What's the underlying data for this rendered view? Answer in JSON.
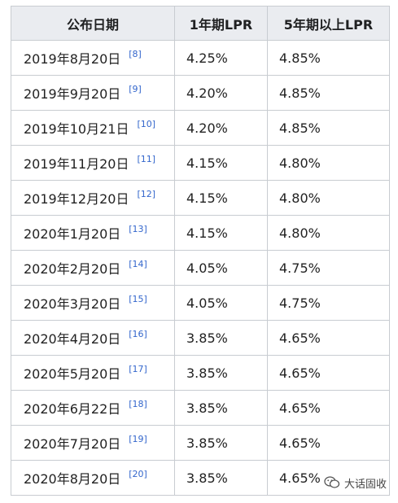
{
  "table": {
    "headers": [
      "公布日期",
      "1年期LPR",
      "5年期以上LPR"
    ],
    "rows": [
      {
        "date": "2019年8月20日",
        "ref": "[8]",
        "lpr1": "4.25%",
        "lpr5": "4.85%"
      },
      {
        "date": "2019年9月20日",
        "ref": "[9]",
        "lpr1": "4.20%",
        "lpr5": "4.85%"
      },
      {
        "date": "2019年10月21日",
        "ref": "[10]",
        "lpr1": "4.20%",
        "lpr5": "4.85%"
      },
      {
        "date": "2019年11月20日",
        "ref": "[11]",
        "lpr1": "4.15%",
        "lpr5": "4.80%"
      },
      {
        "date": "2019年12月20日",
        "ref": "[12]",
        "lpr1": "4.15%",
        "lpr5": "4.80%"
      },
      {
        "date": "2020年1月20日",
        "ref": "[13]",
        "lpr1": "4.15%",
        "lpr5": "4.80%"
      },
      {
        "date": "2020年2月20日",
        "ref": "[14]",
        "lpr1": "4.05%",
        "lpr5": "4.75%"
      },
      {
        "date": "2020年3月20日",
        "ref": "[15]",
        "lpr1": "4.05%",
        "lpr5": "4.75%"
      },
      {
        "date": "2020年4月20日",
        "ref": "[16]",
        "lpr1": "3.85%",
        "lpr5": "4.65%"
      },
      {
        "date": "2020年5月20日",
        "ref": "[17]",
        "lpr1": "3.85%",
        "lpr5": "4.65%"
      },
      {
        "date": "2020年6月22日",
        "ref": "[18]",
        "lpr1": "3.85%",
        "lpr5": "4.65%"
      },
      {
        "date": "2020年7月20日",
        "ref": "[19]",
        "lpr1": "3.85%",
        "lpr5": "4.65%"
      },
      {
        "date": "2020年8月20日",
        "ref": "[20]",
        "lpr1": "3.85%",
        "lpr5": "4.65%"
      }
    ]
  },
  "watermark": {
    "text": "大话固收",
    "icon": "wechat-icon"
  },
  "colors": {
    "header_bg": "#eaecf0",
    "border": "#c8ccd1",
    "ref_link": "#3366cc"
  }
}
